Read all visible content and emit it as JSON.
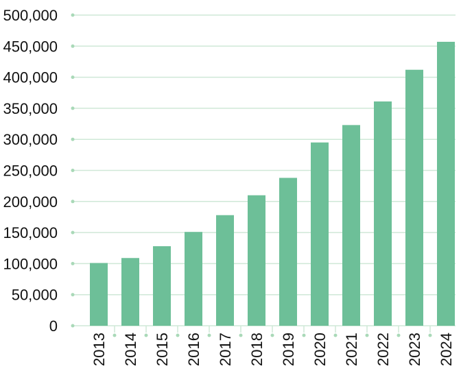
{
  "colors": {
    "bar": "#6dbf98",
    "grid": "#cfe8d7",
    "grid_dot": "#a9d9b8",
    "text": "#111111"
  },
  "chart_data": {
    "type": "bar",
    "title": "",
    "xlabel": "",
    "ylabel": "",
    "categories": [
      "2013",
      "2014",
      "2015",
      "2016",
      "2017",
      "2018",
      "2019",
      "2020",
      "2021",
      "2022",
      "2023",
      "2024"
    ],
    "values": [
      101000,
      109000,
      128000,
      151000,
      178000,
      210000,
      238000,
      295000,
      323000,
      361000,
      412000,
      457000
    ],
    "ylim": [
      0,
      500000
    ],
    "yticks": [
      0,
      50000,
      100000,
      150000,
      200000,
      250000,
      300000,
      350000,
      400000,
      450000,
      500000
    ],
    "ytick_labels": [
      "0",
      "50,000",
      "100,000",
      "150,000",
      "200,000",
      "250,000",
      "300,000",
      "350,000",
      "400,000",
      "450,000",
      "500,000"
    ],
    "grid": true,
    "legend": "none"
  }
}
